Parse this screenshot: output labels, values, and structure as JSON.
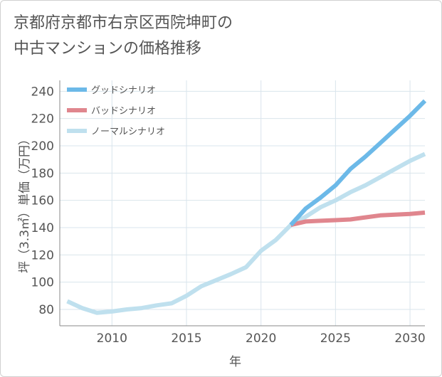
{
  "title": {
    "line1": "京都府京都市右京区西院坤町の",
    "line2": "中古マンションの価格推移"
  },
  "chart_data": {
    "type": "line",
    "xlabel": "年",
    "ylabel": "坪（3.3㎡）単価（万円）",
    "xlim": [
      2006.5,
      2031
    ],
    "ylim": [
      68,
      248
    ],
    "x_ticks": [
      2010,
      2015,
      2020,
      2025,
      2030
    ],
    "y_ticks": [
      80,
      100,
      120,
      140,
      160,
      180,
      200,
      220,
      240
    ],
    "grid": true,
    "legend_position": "top-left",
    "series": [
      {
        "name": "グッドシナリオ",
        "color": "#6cb9e8",
        "x": [
          2022,
          2023,
          2024,
          2025,
          2026,
          2027,
          2028,
          2029,
          2030,
          2031
        ],
        "y": [
          142,
          154,
          162,
          171,
          183,
          192,
          202,
          212,
          222,
          233
        ]
      },
      {
        "name": "バッドシナリオ",
        "color": "#e0868e",
        "x": [
          2022,
          2023,
          2024,
          2025,
          2026,
          2027,
          2028,
          2029,
          2030,
          2031
        ],
        "y": [
          142,
          144.5,
          145,
          145.5,
          146,
          147.5,
          149,
          149.5,
          150,
          151
        ]
      },
      {
        "name": "ノーマルシナリオ",
        "color": "#bfe0ee",
        "x": [
          2007,
          2008,
          2009,
          2010,
          2011,
          2012,
          2013,
          2014,
          2015,
          2016,
          2017,
          2018,
          2019,
          2020,
          2021,
          2022,
          2023,
          2024,
          2025,
          2026,
          2027,
          2028,
          2029,
          2030,
          2031
        ],
        "y": [
          86,
          81,
          77.5,
          78.5,
          80,
          81,
          83,
          84.5,
          90,
          97,
          101.5,
          106,
          111,
          123,
          131,
          142,
          148,
          155,
          160,
          166,
          171,
          177,
          183,
          189,
          194
        ]
      }
    ]
  }
}
